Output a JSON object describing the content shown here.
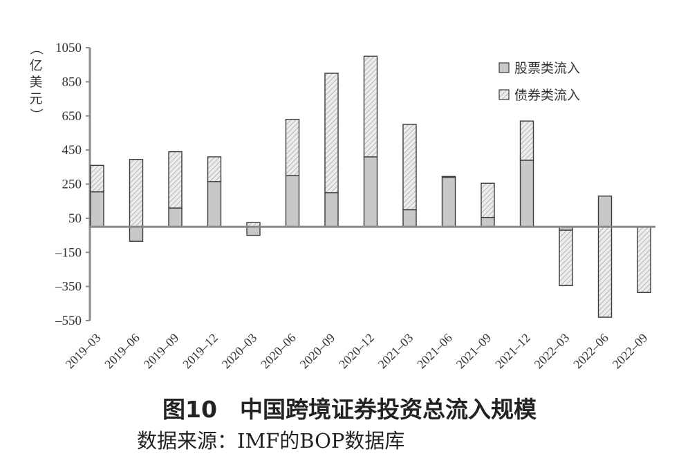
{
  "chart_data": {
    "type": "bar",
    "stacked": true,
    "ylabel": "（亿美元）",
    "ylim": [
      -550,
      1050
    ],
    "yticks": [
      1050,
      850,
      650,
      450,
      250,
      50,
      -150,
      -350,
      -550
    ],
    "categories": [
      "2019–03",
      "2019–06",
      "2019–09",
      "2019–12",
      "2020–03",
      "2020–06",
      "2020–09",
      "2020–12",
      "2021–03",
      "2021–06",
      "2021–09",
      "2021–12",
      "2022–03",
      "2022–06",
      "2022–09"
    ],
    "series": [
      {
        "name": "股票类流入",
        "color": "#c8c8c8",
        "pattern": "solid",
        "values": [
          205,
          -85,
          110,
          265,
          -50,
          300,
          200,
          410,
          100,
          290,
          55,
          390,
          -20,
          180,
          0
        ]
      },
      {
        "name": "债券类流入",
        "color": "#e8e8e8",
        "pattern": "hatched",
        "values": [
          155,
          395,
          330,
          145,
          25,
          330,
          700,
          590,
          500,
          5,
          200,
          230,
          -325,
          -530,
          -385
        ]
      }
    ],
    "legend_position": "top-right",
    "grid": false
  },
  "title": "图10　中国跨境证券投资总流入规模",
  "source": "数据来源：IMF的BOP数据库"
}
